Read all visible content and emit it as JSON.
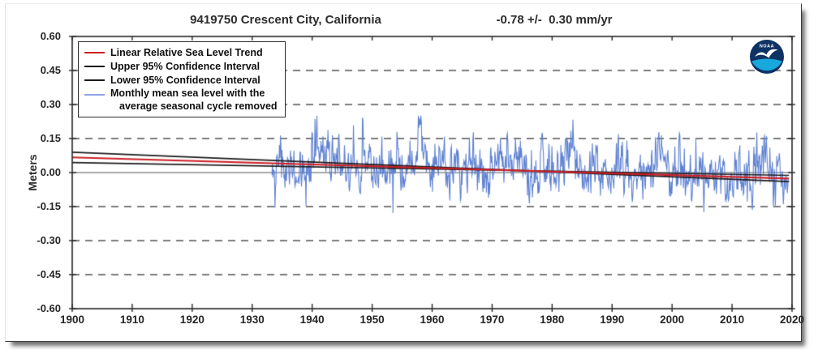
{
  "chart_data": {
    "type": "line",
    "title": "9419750 Crescent City, California",
    "trend_annotation": "-0.78 +/-  0.30 mm/yr",
    "trend_mm_per_yr": -0.78,
    "trend_uncertainty_mm_per_yr": 0.3,
    "ylabel": "Meters",
    "xlim": [
      1900,
      2020
    ],
    "ylim": [
      -0.6,
      0.6
    ],
    "x_ticks": [
      1900,
      1910,
      1920,
      1930,
      1940,
      1950,
      1960,
      1970,
      1980,
      1990,
      2000,
      2010,
      2020
    ],
    "y_ticks": [
      {
        "v": 0.6,
        "label": "0.60"
      },
      {
        "v": 0.45,
        "label": "0.45"
      },
      {
        "v": 0.3,
        "label": "0.30"
      },
      {
        "v": 0.15,
        "label": "0.15"
      },
      {
        "v": 0.0,
        "label": "0.00"
      },
      {
        "v": -0.15,
        "label": "-0.15"
      },
      {
        "v": -0.3,
        "label": "-0.30"
      },
      {
        "v": -0.45,
        "label": "-0.45"
      },
      {
        "v": -0.6,
        "label": "-0.60"
      }
    ],
    "grid": {
      "dashed_levels": [
        0.45,
        0.3,
        0.15,
        -0.15,
        -0.3,
        -0.45
      ],
      "solid_levels": [
        0.0
      ],
      "dash_color": "#7d7d7d",
      "solid_color": "#8c8c8c"
    },
    "series": [
      {
        "name": "Linear Relative Sea Level Trend",
        "color": "#cb2026",
        "points": [
          [
            1900,
            0.067
          ],
          [
            2019.5,
            -0.026
          ]
        ],
        "slope_mm_per_yr": -0.78
      },
      {
        "name": "Upper 95% Confidence Interval",
        "color": "#1a1a1a",
        "points": [
          [
            1900,
            0.0445
          ],
          [
            2019.5,
            -0.0125
          ]
        ],
        "slope_mm_per_yr": -0.48
      },
      {
        "name": "Lower 95% Confidence Interval",
        "color": "#1a1a1a",
        "points": [
          [
            1900,
            0.0895
          ],
          [
            2019.5,
            -0.0395
          ]
        ],
        "slope_mm_per_yr": -1.08
      },
      {
        "name": "Monthly mean sea level with the average seasonal cycle removed",
        "color": "#5e81d2",
        "data_start_year": 1933.3,
        "data_end_year": 2019.4,
        "months_per_year": 12,
        "value_range_typical": [
          -0.18,
          0.18
        ],
        "value_range_extreme": [
          -0.29,
          0.31
        ],
        "synthesis_note": "dense monthly anomaly trace around the trend line; statistics estimated from pixels",
        "synthesis": {
          "seed": 42,
          "std": 0.062,
          "rho": 0.5,
          "spike_prob": 0.08,
          "spike_std": 0.065,
          "clamp": [
            -0.33,
            0.34
          ],
          "anomalies": [
            {
              "year": 1941.0,
              "amp": 0.1,
              "width": 0.6
            },
            {
              "year": 1958.0,
              "amp": 0.11,
              "width": 0.5
            },
            {
              "year": 1983.0,
              "amp": 0.13,
              "width": 0.6
            },
            {
              "year": 1997.9,
              "amp": 0.1,
              "width": 0.5
            },
            {
              "year": 2015.9,
              "amp": 0.11,
              "width": 0.6
            }
          ]
        }
      }
    ],
    "legend": {
      "position": "top-left",
      "entries": [
        {
          "label": "Linear Relative Sea Level Trend",
          "color": "#cb2026"
        },
        {
          "label": "Upper 95% Confidence Interval",
          "color": "#1a1a1a"
        },
        {
          "label": "Lower 95% Confidence Interval",
          "color": "#1a1a1a"
        },
        {
          "label_line1": "Monthly mean sea level with the",
          "label_line2": "average seasonal cycle removed",
          "color": "#8fa4e3"
        }
      ]
    }
  },
  "logo": {
    "agency": "NOAA",
    "text": "NOAA",
    "navy": "#0f3264",
    "cyan": "#19a8dc"
  }
}
